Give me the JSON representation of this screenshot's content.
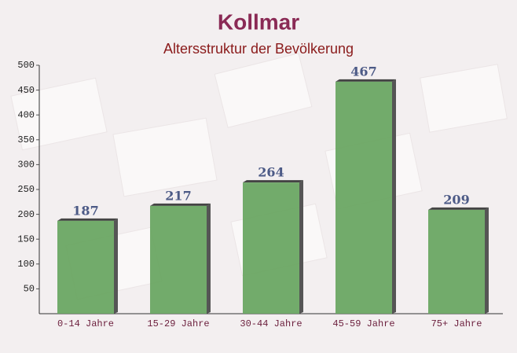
{
  "chart_data": {
    "type": "bar",
    "title": "Kollmar",
    "subtitle": "Altersstruktur der Bevölkerung",
    "categories": [
      "0-14 Jahre",
      "15-29 Jahre",
      "30-44 Jahre",
      "45-59 Jahre",
      "75+ Jahre"
    ],
    "values": [
      187,
      217,
      264,
      467,
      209
    ],
    "color": "#6aa663",
    "ylim": [
      0,
      500
    ],
    "yticks": [
      50,
      100,
      150,
      200,
      250,
      300,
      350,
      400,
      450,
      500
    ]
  }
}
